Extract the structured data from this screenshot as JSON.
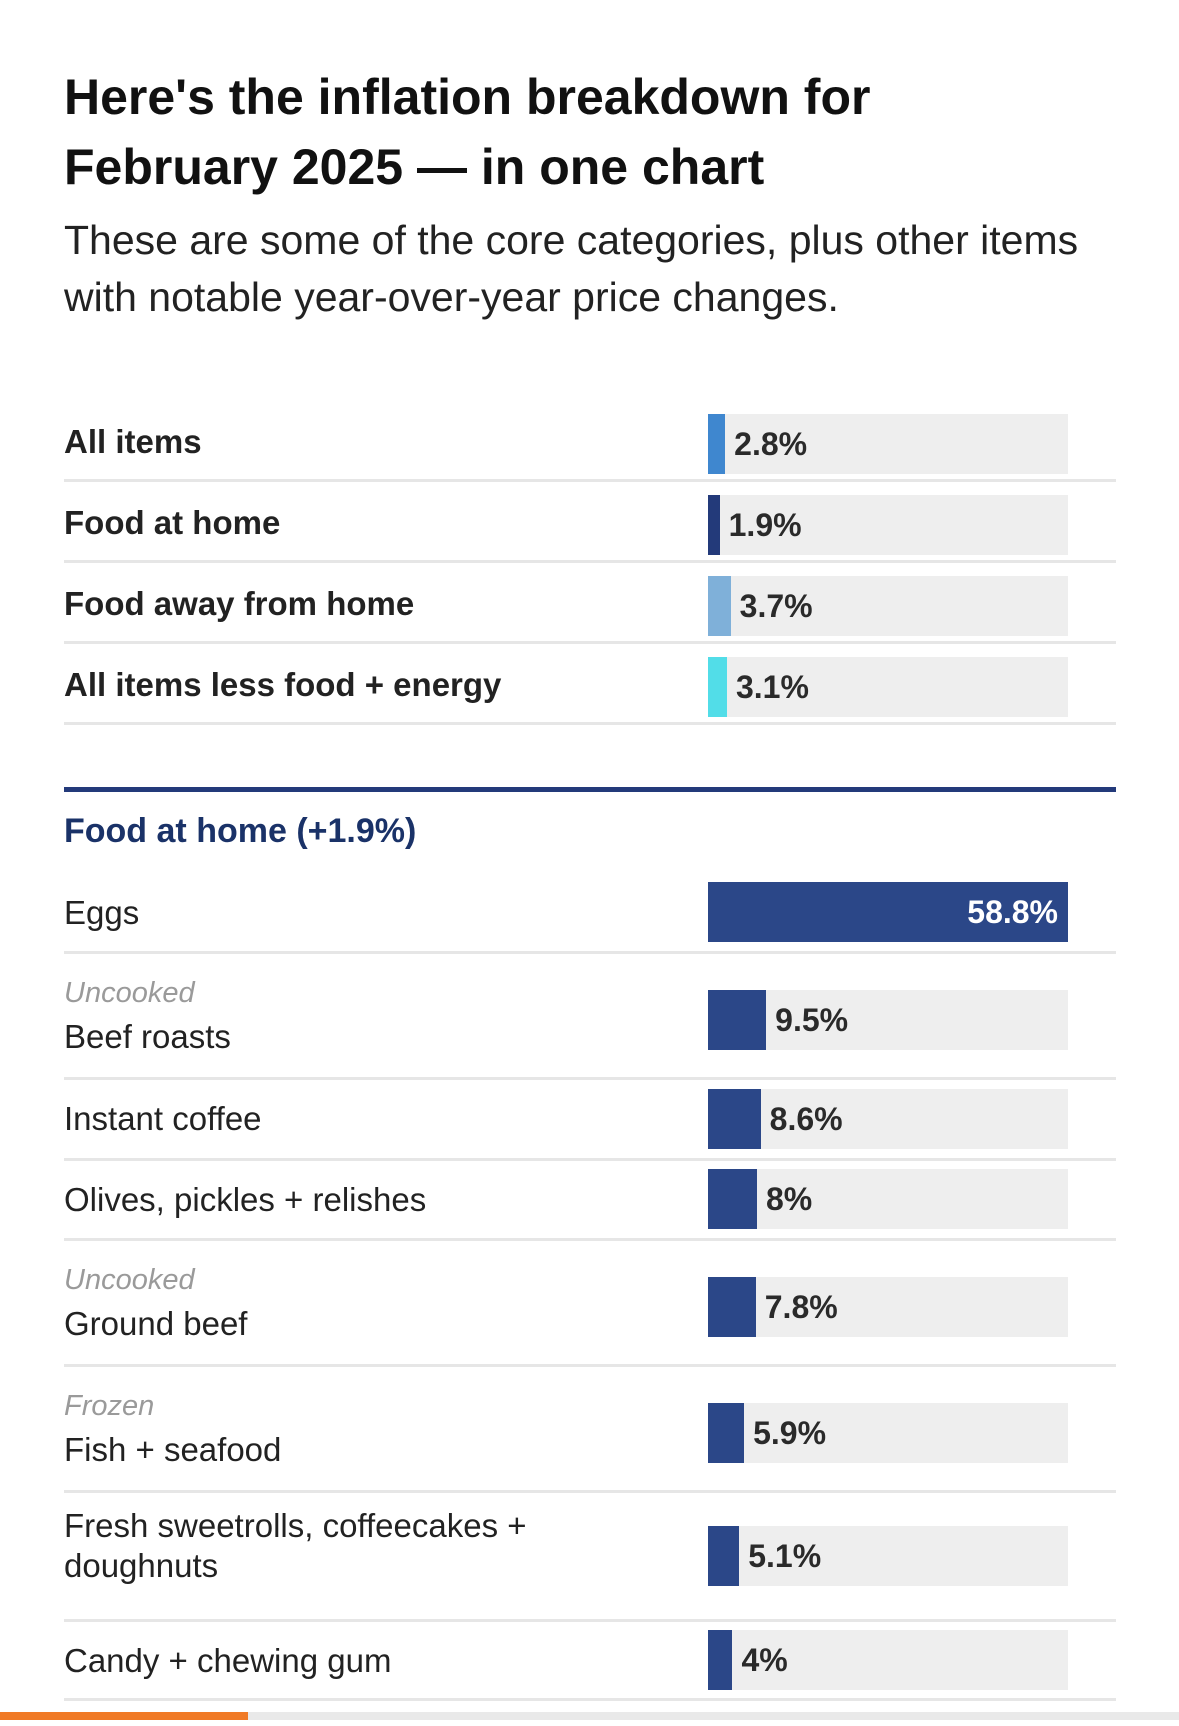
{
  "header": {
    "title": "Here's the inflation breakdown for February 2025 — in one chart",
    "subtitle": "These are some of the core categories, plus other items with notable year-over-year price changes."
  },
  "section": {
    "title": "Food at home (+1.9%)"
  },
  "colors": {
    "all_items": "#3f87cf",
    "food_at_home": "#233a7a",
    "food_away": "#7fb0d9",
    "core": "#52dde8",
    "item_bar": "#2b4788",
    "track": "#eeeeee",
    "section_rule": "#233a7a",
    "progress": "#f07a26"
  },
  "scroll_progress": 0.21,
  "chart_data": [
    {
      "type": "bar",
      "orientation": "horizontal",
      "title": "",
      "categories": [
        "All items",
        "Food at home",
        "Food away from home",
        "All items less food + energy"
      ],
      "values": [
        2.8,
        1.9,
        3.7,
        3.1
      ],
      "labels": [
        "2.8%",
        "1.9%",
        "3.7%",
        "3.1%"
      ],
      "xlim": [
        0,
        58.8
      ]
    },
    {
      "type": "bar",
      "orientation": "horizontal",
      "title": "Food at home (+1.9%)",
      "categories": [
        {
          "qualifier": "",
          "name": "Eggs"
        },
        {
          "qualifier": "Uncooked",
          "name": "Beef roasts"
        },
        {
          "qualifier": "",
          "name": "Instant coffee"
        },
        {
          "qualifier": "",
          "name": "Olives, pickles + relishes"
        },
        {
          "qualifier": "Uncooked",
          "name": "Ground beef"
        },
        {
          "qualifier": "Frozen",
          "name": "Fish + seafood"
        },
        {
          "qualifier": "",
          "name": "Fresh sweetrolls, coffeecakes + doughnuts"
        },
        {
          "qualifier": "",
          "name": "Candy + chewing gum"
        }
      ],
      "values": [
        58.8,
        9.5,
        8.6,
        8,
        7.8,
        5.9,
        5.1,
        4
      ],
      "labels": [
        "58.8%",
        "9.5%",
        "8.6%",
        "8%",
        "7.8%",
        "5.9%",
        "5.1%",
        "4%"
      ],
      "xlim": [
        0,
        58.8
      ]
    }
  ]
}
